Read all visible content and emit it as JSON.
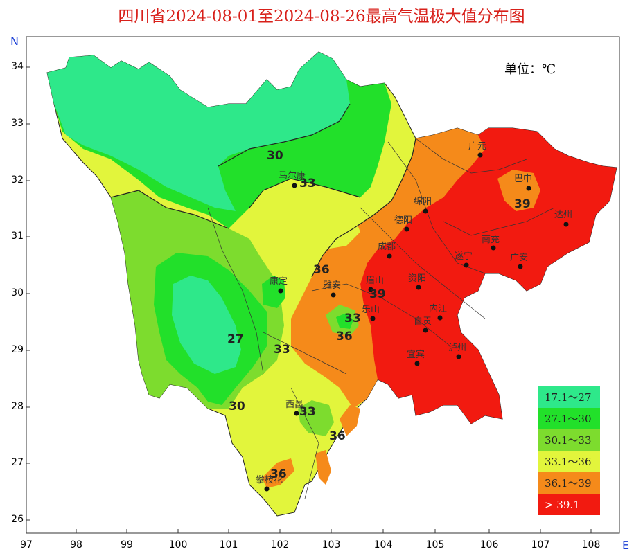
{
  "title": "四川省2024-08-01至2024-08-26最高气温极大值分布图",
  "unit_label": "单位：℃",
  "north_label": "N",
  "east_label": "E",
  "axes": {
    "y_ticks": [
      "34",
      "33",
      "32",
      "31",
      "30",
      "29",
      "28",
      "27",
      "26"
    ],
    "x_ticks": [
      "97",
      "98",
      "99",
      "100",
      "101",
      "102",
      "103",
      "104",
      "105",
      "106",
      "107",
      "108"
    ]
  },
  "legend": [
    {
      "label": "17.1～27",
      "color": "#2ee88a"
    },
    {
      "label": "27.1～30",
      "color": "#22e02a"
    },
    {
      "label": "30.1～33",
      "color": "#7ddc2e"
    },
    {
      "label": "33.1～36",
      "color": "#e2f53c"
    },
    {
      "label": "36.1～39",
      "color": "#f58a1a"
    },
    {
      "label": "> 39.1",
      "color": "#f21a10"
    }
  ],
  "cities": [
    "广元",
    "巴中",
    "马尔康",
    "绵阳",
    "达州",
    "德阳",
    "成都",
    "南充",
    "遂宁",
    "广安",
    "雅安",
    "眉山",
    "资阳",
    "康定",
    "乐山",
    "内江",
    "自贡",
    "宜宾",
    "泸州",
    "西昌",
    "攀枝花"
  ],
  "contour_labels": [
    "30",
    "33",
    "33",
    "36",
    "39",
    "39",
    "27",
    "33",
    "30",
    "33",
    "36",
    "36",
    "36"
  ]
}
